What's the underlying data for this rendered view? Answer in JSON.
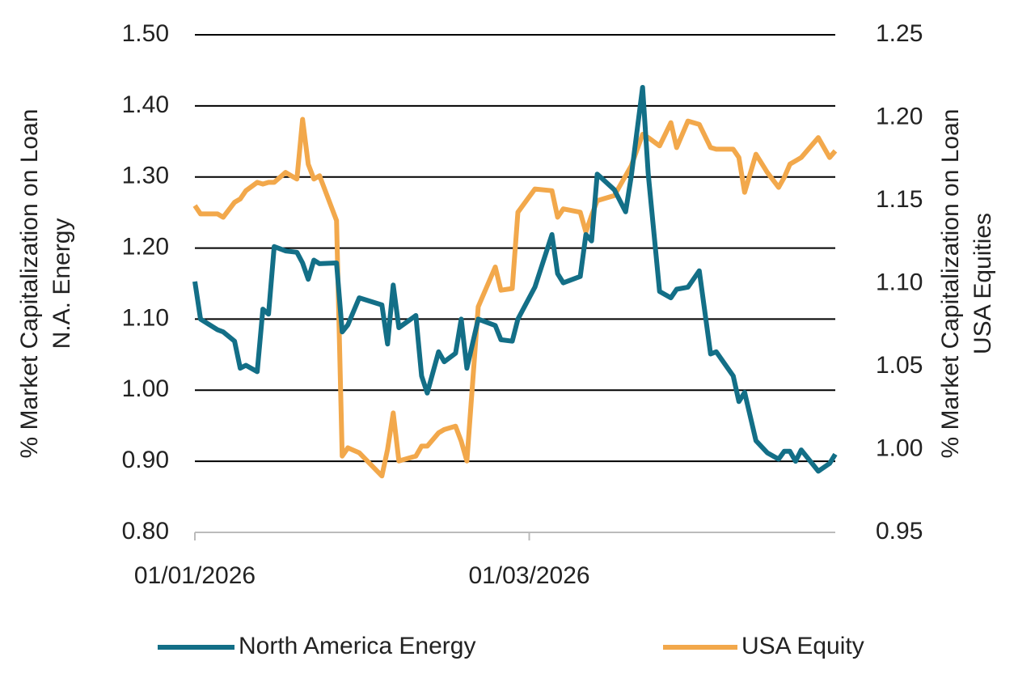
{
  "chart_data": {
    "type": "line",
    "y_label": [
      "% Market Capitalization on Loan",
      "N.A. Energy"
    ],
    "y2_label": [
      "% Market Capitalization on Loan",
      "USA Equities"
    ],
    "x": [
      "01/01/2026",
      "02/01/2026",
      "05/01/2026",
      "06/01/2026",
      "08/01/2026",
      "09/01/2026",
      "10/01/2026",
      "12/01/2026",
      "13/01/2026",
      "14/01/2026",
      "15/01/2026",
      "17/01/2026",
      "19/01/2026",
      "20/01/2026",
      "21/01/2026",
      "22/01/2026",
      "23/01/2026",
      "26/01/2026",
      "27/01/2026",
      "28/01/2026",
      "30/01/2026",
      "03/02/2026",
      "04/02/2026",
      "05/02/2026",
      "06/02/2026",
      "09/02/2026",
      "10/02/2026",
      "11/02/2026",
      "13/02/2026",
      "14/02/2026",
      "16/02/2026",
      "17/02/2026",
      "18/02/2026",
      "20/02/2026",
      "23/02/2026",
      "24/02/2026",
      "26/02/2026",
      "27/02/2026",
      "02/03/2026",
      "05/03/2026",
      "06/03/2026",
      "07/03/2026",
      "10/03/2026",
      "11/03/2026",
      "12/03/2026",
      "13/03/2026",
      "16/03/2026",
      "18/03/2026",
      "19/03/2026",
      "21/03/2026",
      "22/03/2026",
      "24/03/2026",
      "26/03/2026",
      "27/03/2026",
      "29/03/2026",
      "31/03/2026",
      "02/04/2026",
      "03/04/2026",
      "06/04/2026",
      "07/04/2026",
      "08/04/2026",
      "10/04/2026",
      "12/04/2026",
      "14/04/2026",
      "15/04/2026",
      "16/04/2026",
      "17/04/2026",
      "18/04/2026",
      "21/04/2026",
      "23/04/2026",
      "24/04/2026"
    ],
    "xlim": [
      "01/01/2026",
      "24/04/2026"
    ],
    "xticks": [
      "01/01/2026",
      "01/03/2026"
    ],
    "ylim": [
      0.8,
      1.5
    ],
    "yticks": [
      {
        "value": 0.8,
        "label": "0.80"
      },
      {
        "value": 0.9,
        "label": "0.90"
      },
      {
        "value": 1.0,
        "label": "1.00"
      },
      {
        "value": 1.1,
        "label": "1.10"
      },
      {
        "value": 1.2,
        "label": "1.20"
      },
      {
        "value": 1.3,
        "label": "1.30"
      },
      {
        "value": 1.4,
        "label": "1.40"
      },
      {
        "value": 1.5,
        "label": "1.50"
      }
    ],
    "y2lim": [
      0.95,
      1.25
    ],
    "y2ticks": [
      0.95,
      {
        "value": 1.0,
        "label": "1.00"
      },
      1.05,
      {
        "value": 1.1,
        "label": "1.10"
      },
      1.15,
      {
        "value": 1.2,
        "label": "1.20"
      },
      1.25
    ],
    "grid": true,
    "legend": "bottom",
    "series": [
      {
        "name": "North America Energy",
        "color": "#136f87",
        "axis": "y",
        "values": [
          1.153,
          1.1,
          1.085,
          1.082,
          1.069,
          1.031,
          1.035,
          1.026,
          1.114,
          1.107,
          1.202,
          1.196,
          1.194,
          1.179,
          1.156,
          1.183,
          1.178,
          1.179,
          1.082,
          1.092,
          1.13,
          1.12,
          1.065,
          1.148,
          1.088,
          1.105,
          1.02,
          0.996,
          1.054,
          1.04,
          1.052,
          1.1,
          1.031,
          1.1,
          1.091,
          1.071,
          1.069,
          1.1,
          1.145,
          1.219,
          1.164,
          1.151,
          1.16,
          1.219,
          1.21,
          1.304,
          1.282,
          1.251,
          1.301,
          1.426,
          1.304,
          1.139,
          1.13,
          1.142,
          1.145,
          1.168,
          1.051,
          1.054,
          1.02,
          0.984,
          0.997,
          0.929,
          0.912,
          0.903,
          0.914,
          0.914,
          0.9,
          0.916,
          0.886,
          0.897,
          0.91
        ]
      },
      {
        "name": "USA Equity",
        "color": "#f2a84b",
        "axis": "y2",
        "values": [
          1.147,
          1.142,
          1.142,
          1.14,
          1.149,
          1.151,
          1.156,
          1.161,
          1.16,
          1.161,
          1.161,
          1.167,
          1.163,
          1.199,
          1.172,
          1.163,
          1.165,
          1.138,
          0.996,
          1.001,
          0.998,
          0.984,
          1.0,
          1.022,
          0.993,
          0.996,
          1.002,
          1.002,
          1.01,
          1.012,
          1.014,
          1.005,
          0.993,
          1.086,
          1.11,
          1.096,
          1.097,
          1.143,
          1.157,
          1.156,
          1.14,
          1.145,
          1.143,
          1.131,
          1.141,
          1.15,
          1.153,
          1.165,
          1.171,
          1.19,
          1.188,
          1.183,
          1.197,
          1.182,
          1.198,
          1.196,
          1.182,
          1.181,
          1.181,
          1.176,
          1.155,
          1.178,
          1.167,
          1.158,
          1.164,
          1.172,
          1.174,
          1.176,
          1.188,
          1.176,
          1.18
        ]
      }
    ]
  }
}
